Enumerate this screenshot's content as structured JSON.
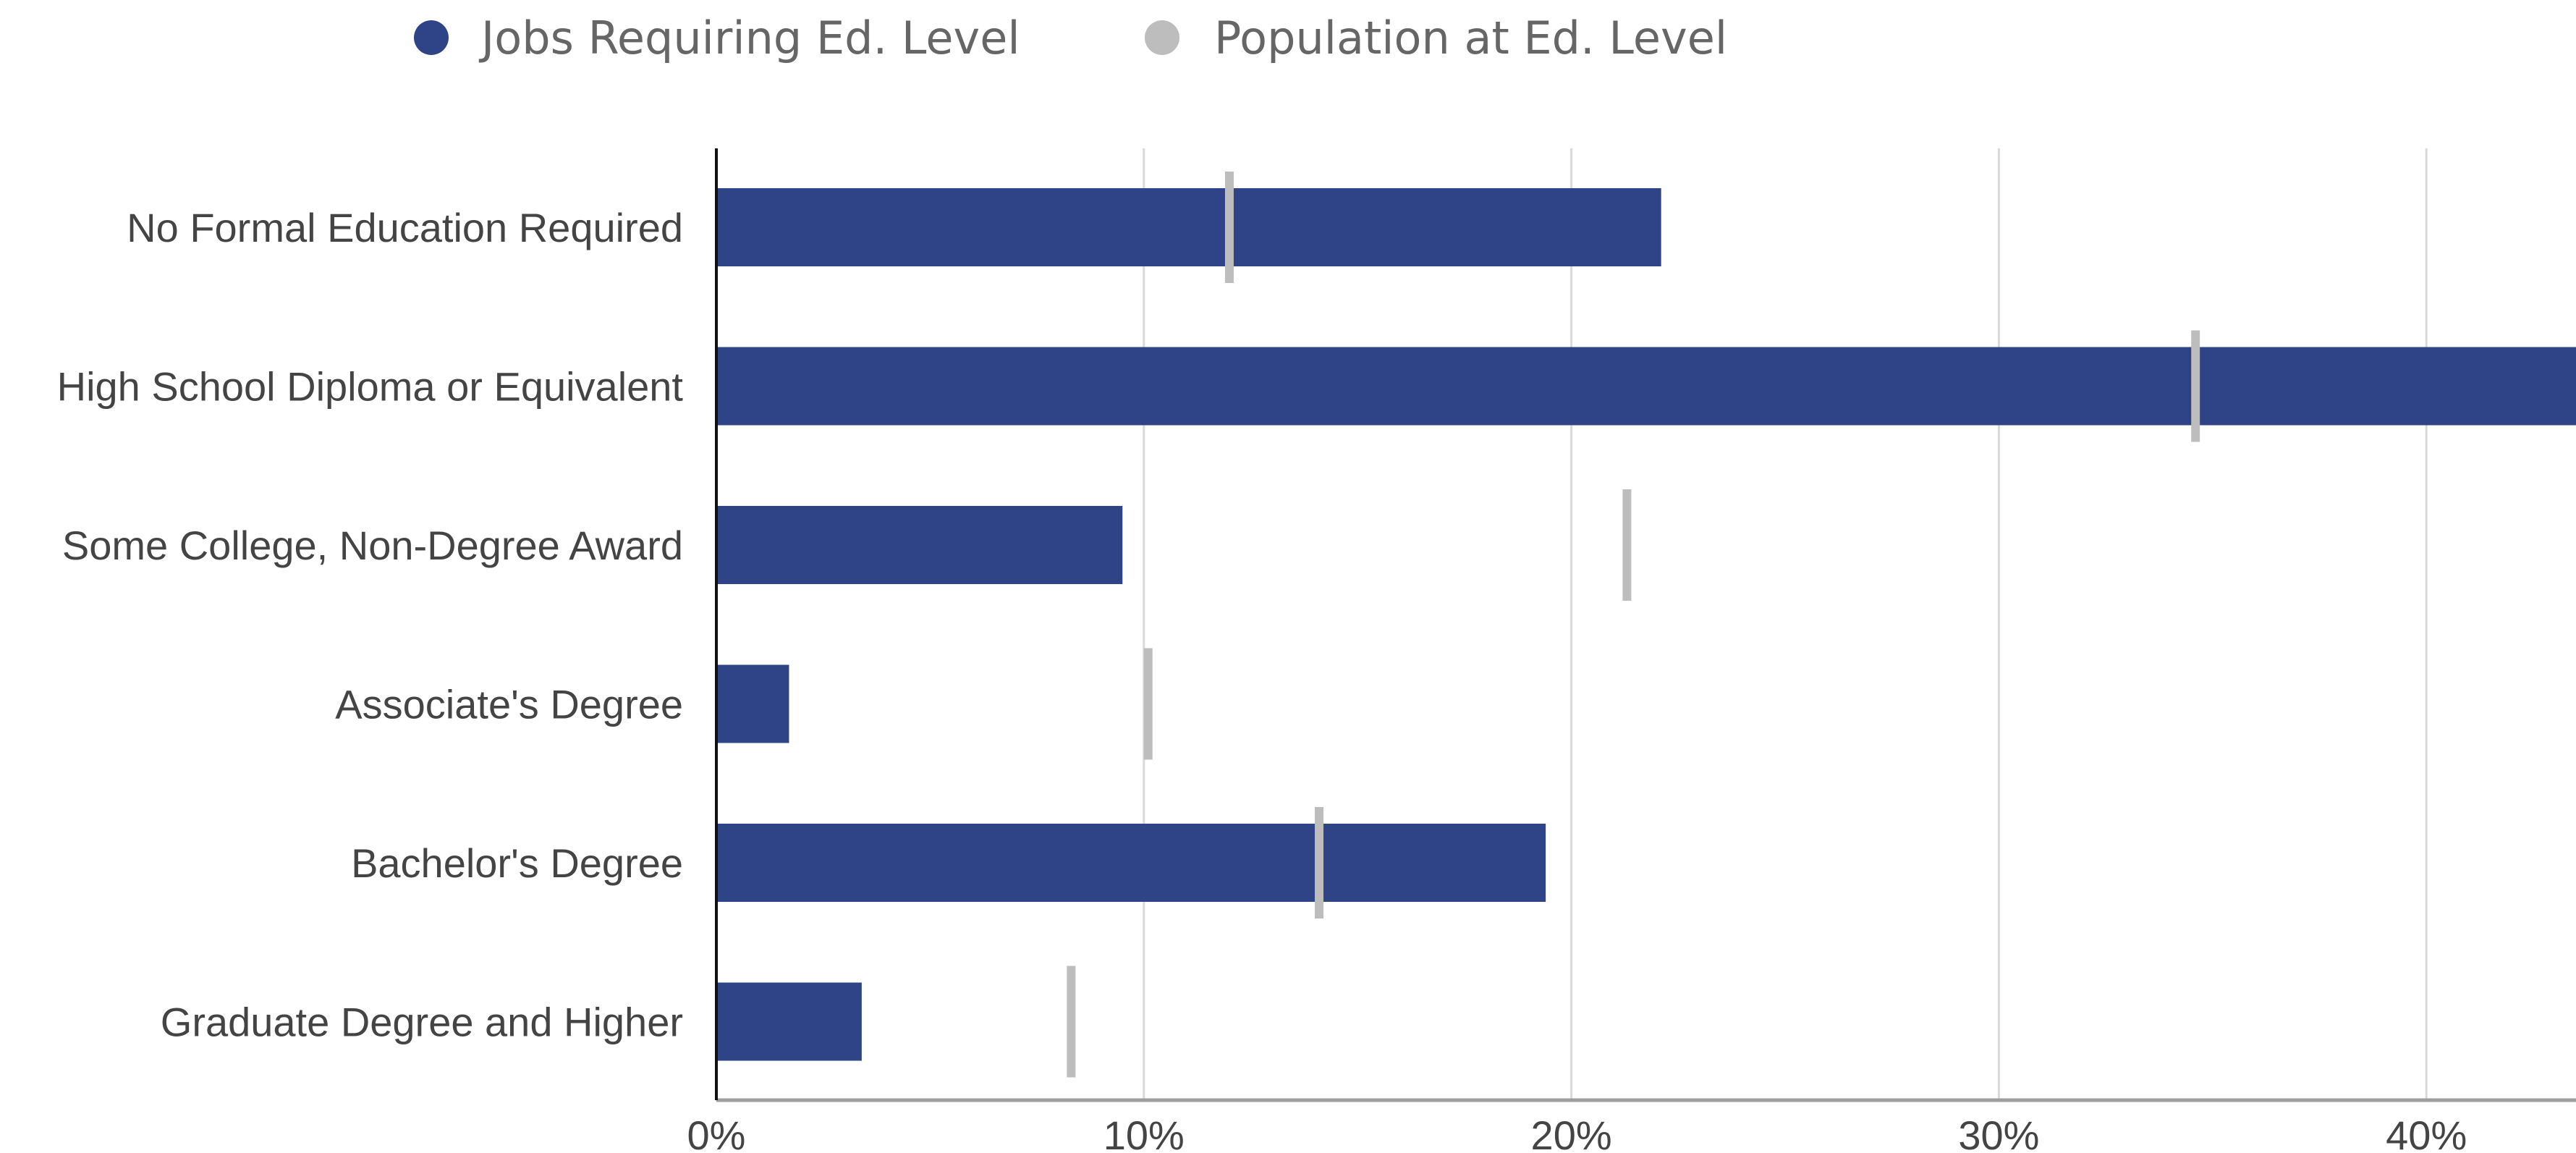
{
  "chart_data": {
    "type": "bar",
    "orientation": "horizontal",
    "title": "",
    "xlabel": "",
    "ylabel": "",
    "categories": [
      "No Formal Education Required",
      "High School Diploma or Equivalent",
      "Some College, Non-Degree Award",
      "Associate's Degree",
      "Bachelor's Degree",
      "Graduate Degree and Higher"
    ],
    "series": [
      {
        "name": "Jobs Requiring Ed. Level",
        "mark": "bar",
        "color": "#2e4486",
        "values": [
          22.1,
          43.5,
          9.5,
          1.7,
          19.4,
          3.4
        ]
      },
      {
        "name": "Population at Ed. Level",
        "mark": "tick",
        "color": "#bdbdbd",
        "values": [
          12.0,
          34.6,
          21.3,
          10.1,
          14.1,
          8.3
        ]
      }
    ],
    "xlim": [
      0,
      43.5
    ],
    "x_ticks": [
      0,
      10,
      20,
      30,
      40
    ],
    "x_tick_labels": [
      "0%",
      "10%",
      "20%",
      "30%",
      "40%"
    ],
    "grid": true,
    "legend": "top-left"
  },
  "colors": {
    "bar": "#2e4486",
    "tick": "#bdbdbd",
    "grid": "#d9d9d9",
    "axis": "#111111",
    "baseline": "#9e9e9e"
  }
}
